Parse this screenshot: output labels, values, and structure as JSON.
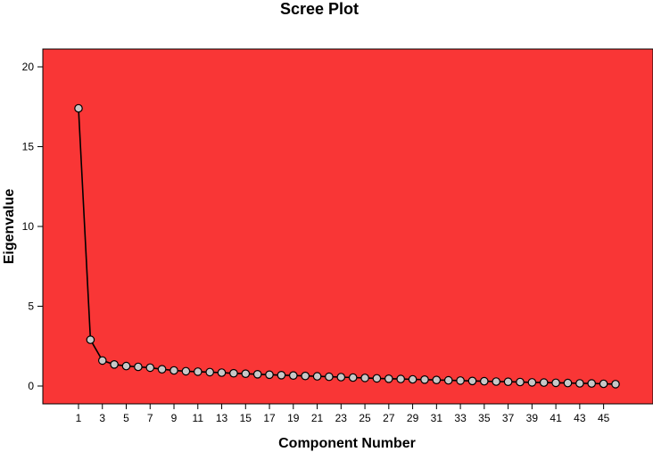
{
  "chart_data": {
    "type": "line",
    "title": "Scree Plot",
    "xlabel": "Component Number",
    "ylabel": "Eigenvalue",
    "x": [
      1,
      2,
      3,
      4,
      5,
      6,
      7,
      8,
      9,
      10,
      11,
      12,
      13,
      14,
      15,
      16,
      17,
      18,
      19,
      20,
      21,
      22,
      23,
      24,
      25,
      26,
      27,
      28,
      29,
      30,
      31,
      32,
      33,
      34,
      35,
      36,
      37,
      38,
      39,
      40,
      41,
      42,
      43,
      44,
      45,
      46
    ],
    "values": [
      17.4,
      2.9,
      1.6,
      1.35,
      1.25,
      1.2,
      1.15,
      1.05,
      0.98,
      0.93,
      0.9,
      0.87,
      0.84,
      0.8,
      0.77,
      0.74,
      0.71,
      0.68,
      0.66,
      0.63,
      0.61,
      0.58,
      0.56,
      0.53,
      0.51,
      0.48,
      0.46,
      0.44,
      0.42,
      0.4,
      0.38,
      0.36,
      0.34,
      0.32,
      0.3,
      0.28,
      0.27,
      0.25,
      0.23,
      0.22,
      0.2,
      0.19,
      0.17,
      0.16,
      0.14,
      0.12
    ],
    "x_tick_labels": [
      "1",
      "3",
      "5",
      "7",
      "9",
      "11",
      "13",
      "15",
      "17",
      "19",
      "21",
      "23",
      "25",
      "27",
      "29",
      "31",
      "33",
      "35",
      "37",
      "39",
      "41",
      "43",
      "45"
    ],
    "y_tick_labels": [
      "0",
      "5",
      "10",
      "15",
      "20"
    ],
    "ylim": [
      0,
      20
    ],
    "xlim": [
      -1.5,
      48
    ],
    "plot_background": "#f93636",
    "line_color": "#000000",
    "marker_fill": "#c8c8c8",
    "grid": false,
    "legend": "none"
  }
}
